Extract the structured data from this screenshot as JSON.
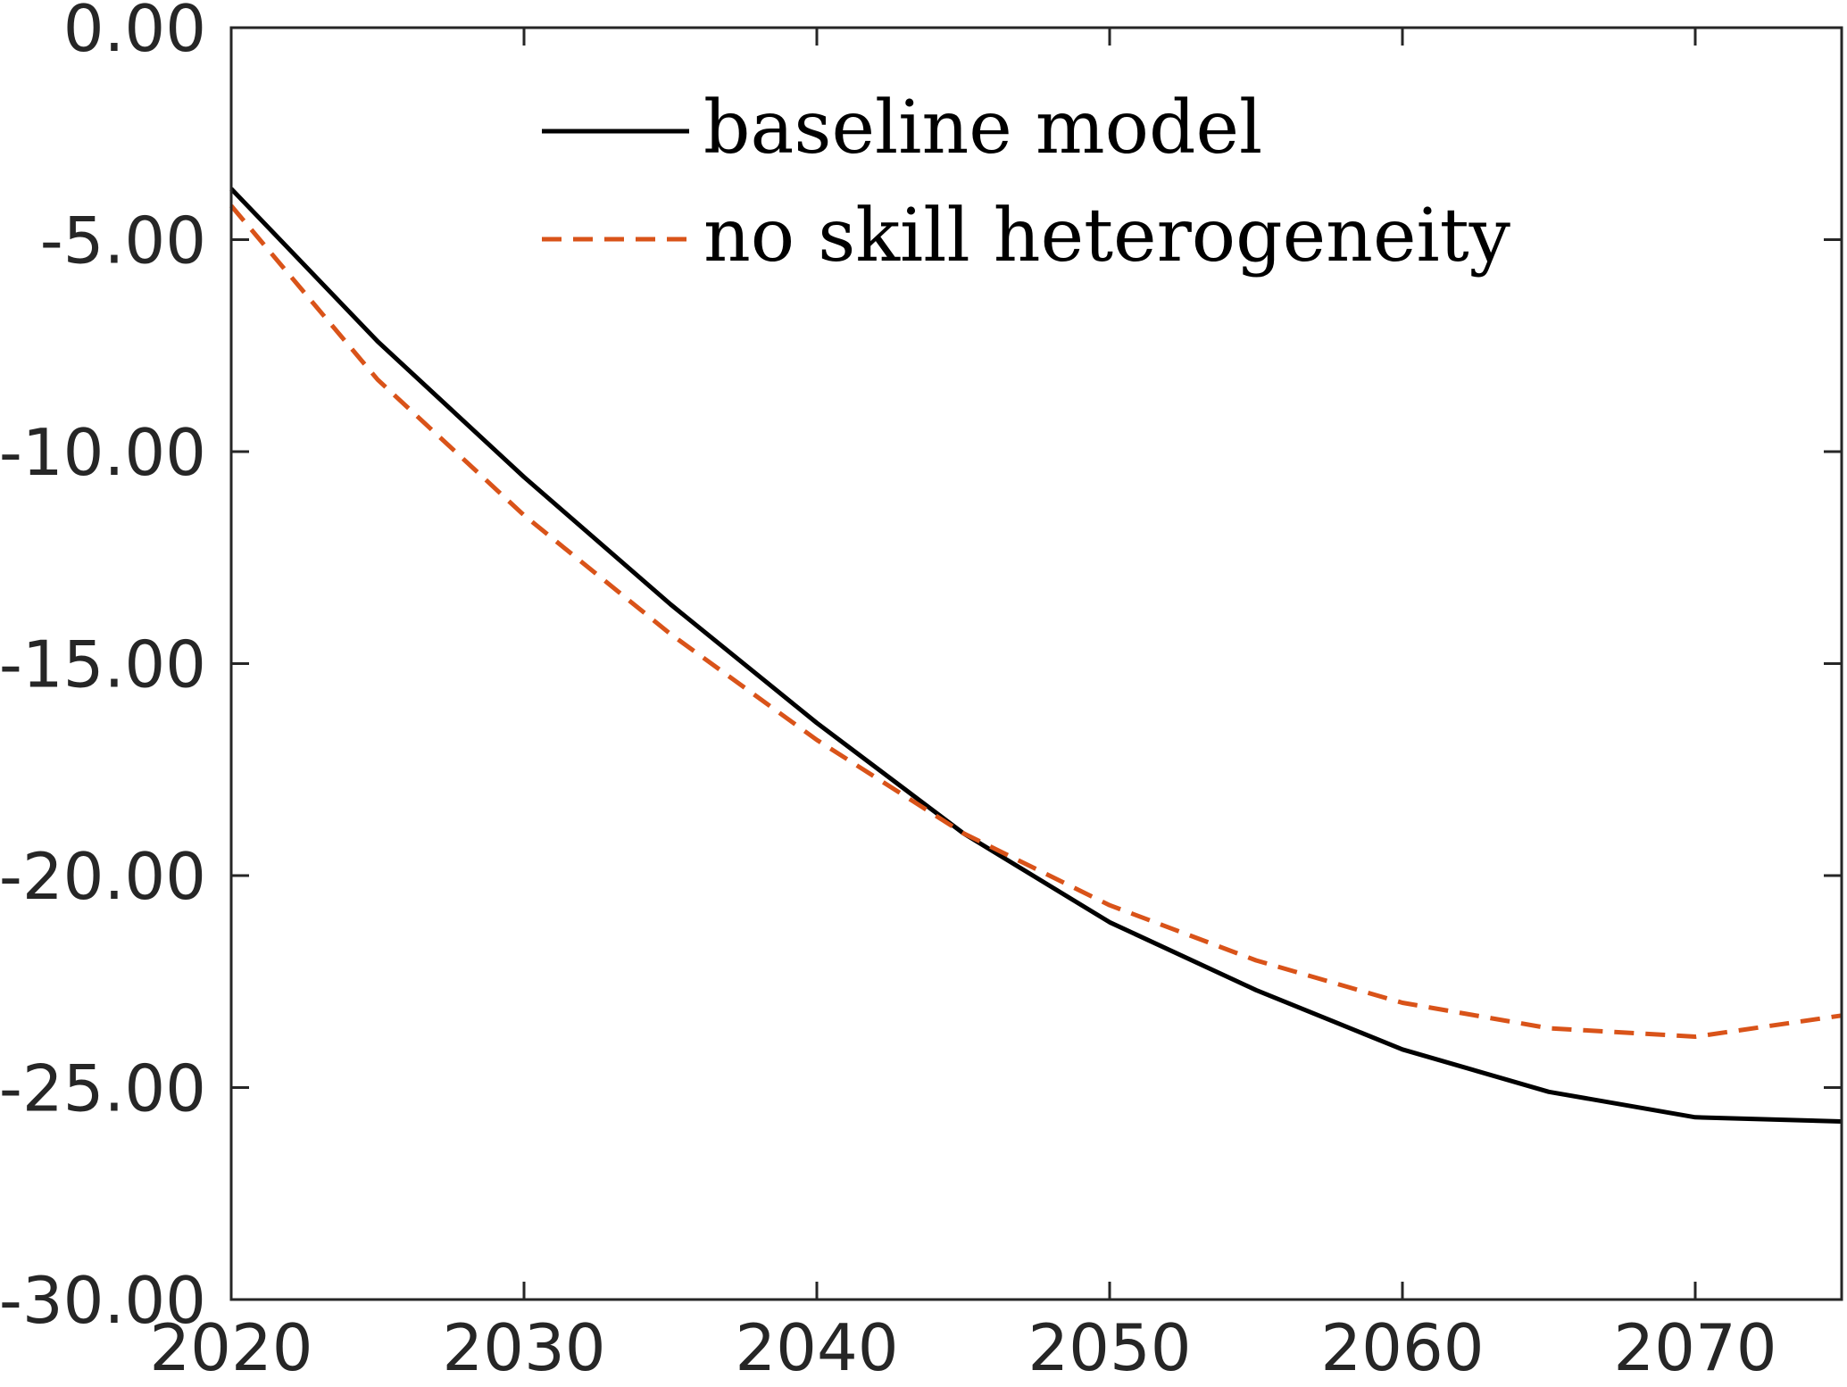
{
  "chart_data": {
    "type": "line",
    "title": "",
    "xlabel": "",
    "ylabel": "",
    "xlim": [
      2020,
      2075
    ],
    "ylim": [
      -30,
      0
    ],
    "grid": false,
    "legend_position": "top-center",
    "x_ticks": [
      2020,
      2030,
      2040,
      2050,
      2060,
      2070
    ],
    "x_tick_labels": [
      "2020",
      "2030",
      "2040",
      "2050",
      "2060",
      "2070"
    ],
    "y_ticks": [
      0,
      -5,
      -10,
      -15,
      -20,
      -25,
      -30
    ],
    "y_tick_labels": [
      "0.00",
      "-5.00",
      "-10.00",
      "-15.00",
      "-20.00",
      "-25.00",
      "-30.00"
    ],
    "x": [
      2020,
      2025,
      2030,
      2035,
      2040,
      2045,
      2050,
      2055,
      2060,
      2065,
      2070,
      2075
    ],
    "series": [
      {
        "name": "baseline model",
        "color": "#000000",
        "dash": "solid",
        "values": [
          -3.8,
          -7.4,
          -10.6,
          -13.6,
          -16.4,
          -19.0,
          -21.1,
          -22.7,
          -24.1,
          -25.1,
          -25.7,
          -25.8
        ]
      },
      {
        "name": "no skill heterogeneity",
        "color": "#D95319",
        "dash": "dashed",
        "values": [
          -4.2,
          -8.3,
          -11.5,
          -14.3,
          -16.8,
          -19.0,
          -20.7,
          -22.0,
          -23.0,
          -23.6,
          -23.8,
          -23.3
        ]
      }
    ]
  }
}
